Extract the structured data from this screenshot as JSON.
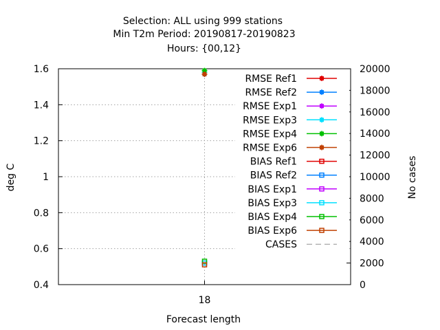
{
  "chart_data": {
    "type": "line",
    "title_lines": [
      "Selection: ALL using   999 stations",
      "Min T2m   Period: 20190817-20190823",
      "Hours: {00,12}"
    ],
    "xlabel": "Forecast length",
    "ylabel": "deg C",
    "y2label": "No cases",
    "x": [
      18
    ],
    "xtick_labels": [
      "18"
    ],
    "ylim": [
      0.4,
      1.6
    ],
    "yticks": [
      0.4,
      0.6,
      0.8,
      1.0,
      1.2,
      1.4,
      1.6
    ],
    "ytick_labels": [
      "0.4",
      "0.6",
      "0.8",
      "1",
      "1.2",
      "1.4",
      "1.6"
    ],
    "y2lim": [
      0,
      20000
    ],
    "y2ticks": [
      0,
      2000,
      4000,
      6000,
      8000,
      10000,
      12000,
      14000,
      16000,
      18000,
      20000
    ],
    "y2tick_labels": [
      "0",
      "2000",
      "4000",
      "6000",
      "8000",
      "10000",
      "12000",
      "14000",
      "16000",
      "18000",
      "20000"
    ],
    "grid": true,
    "legend_position": "top-right",
    "series": [
      {
        "name": "RMSE Ref1",
        "color": "#e00000",
        "marker": "cross-filled",
        "axis": "y1",
        "values": [
          1.57
        ]
      },
      {
        "name": "RMSE Ref2",
        "color": "#0080ff",
        "marker": "cross-filled",
        "axis": "y1",
        "values": [
          1.57
        ]
      },
      {
        "name": "RMSE Exp1",
        "color": "#c000ff",
        "marker": "cross-filled",
        "axis": "y1",
        "values": [
          1.58
        ]
      },
      {
        "name": "RMSE Exp3",
        "color": "#00e0ff",
        "marker": "cross-filled",
        "axis": "y1",
        "values": [
          1.58
        ]
      },
      {
        "name": "RMSE Exp4",
        "color": "#00c000",
        "marker": "cross-filled",
        "axis": "y1",
        "values": [
          1.59
        ]
      },
      {
        "name": "RMSE Exp6",
        "color": "#c04000",
        "marker": "cross-filled",
        "axis": "y1",
        "values": [
          1.57
        ]
      },
      {
        "name": "BIAS Ref1",
        "color": "#e00000",
        "marker": "open-square",
        "axis": "y1",
        "values": [
          0.52
        ]
      },
      {
        "name": "BIAS Ref2",
        "color": "#0080ff",
        "marker": "open-square",
        "axis": "y1",
        "values": [
          0.52
        ]
      },
      {
        "name": "BIAS Exp1",
        "color": "#c000ff",
        "marker": "open-square",
        "axis": "y1",
        "values": [
          0.52
        ]
      },
      {
        "name": "BIAS Exp3",
        "color": "#00e0ff",
        "marker": "open-square",
        "axis": "y1",
        "values": [
          0.52
        ]
      },
      {
        "name": "BIAS Exp4",
        "color": "#00c000",
        "marker": "open-square",
        "axis": "y1",
        "values": [
          0.53
        ]
      },
      {
        "name": "BIAS Exp6",
        "color": "#c04000",
        "marker": "open-square",
        "axis": "y1",
        "values": [
          0.51
        ]
      },
      {
        "name": "CASES",
        "color": "#909090",
        "marker": "none",
        "dashed": true,
        "axis": "y2",
        "values": [
          null
        ]
      }
    ]
  }
}
